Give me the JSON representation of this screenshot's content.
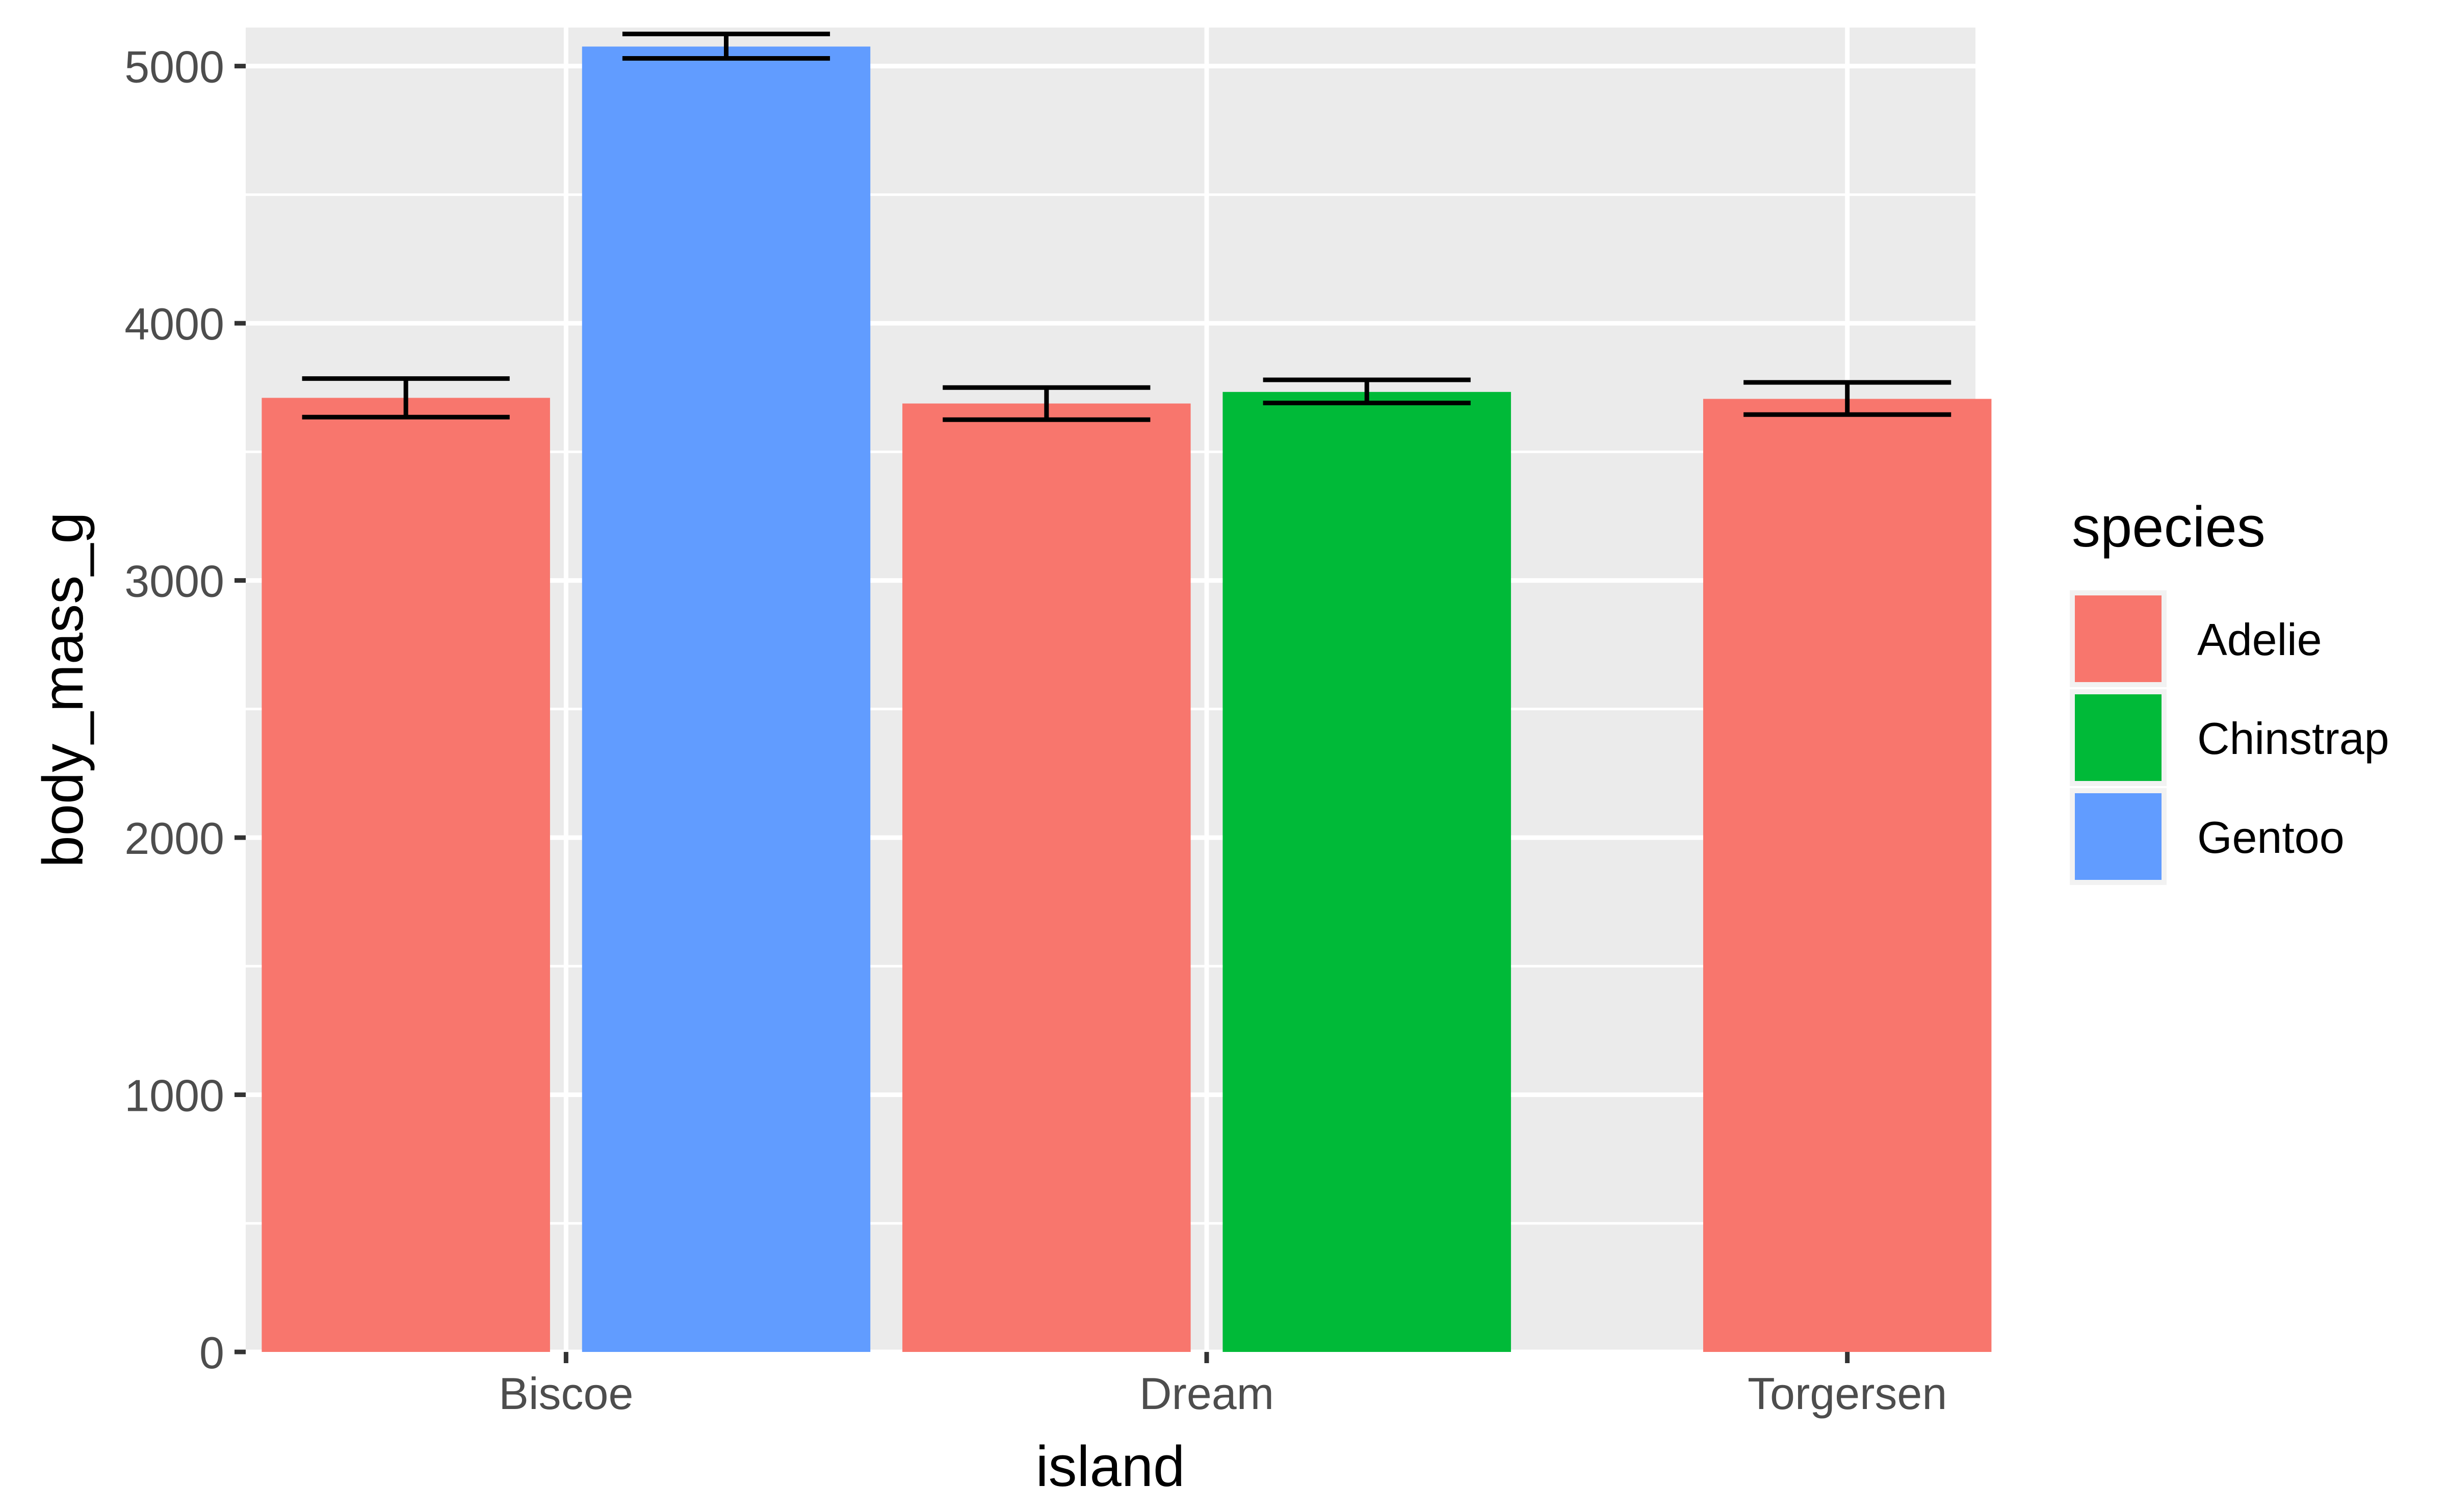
{
  "chart_data": {
    "type": "bar",
    "xlabel": "island",
    "ylabel": "body_mass_g",
    "ylim": [
      0,
      5150
    ],
    "yticks": [
      0,
      1000,
      2000,
      3000,
      4000,
      5000
    ],
    "categories": [
      "Biscoe",
      "Dream",
      "Torgersen"
    ],
    "legend": {
      "title": "species",
      "position": "right",
      "items": [
        {
          "name": "Adelie",
          "color": "#F8766D"
        },
        {
          "name": "Chinstrap",
          "color": "#00BA38"
        },
        {
          "name": "Gentoo",
          "color": "#619CFF"
        }
      ]
    },
    "grid": true,
    "bars": [
      {
        "category": "Biscoe",
        "species": "Adelie",
        "slot": 0,
        "slots": 2,
        "value": 3710,
        "err_low": 3635,
        "err_high": 3785
      },
      {
        "category": "Biscoe",
        "species": "Gentoo",
        "slot": 1,
        "slots": 2,
        "value": 5076,
        "err_low": 5030,
        "err_high": 5125
      },
      {
        "category": "Dream",
        "species": "Adelie",
        "slot": 0,
        "slots": 2,
        "value": 3688,
        "err_low": 3625,
        "err_high": 3750
      },
      {
        "category": "Dream",
        "species": "Chinstrap",
        "slot": 1,
        "slots": 2,
        "value": 3733,
        "err_low": 3690,
        "err_high": 3780
      },
      {
        "category": "Torgersen",
        "species": "Adelie",
        "slot": 0,
        "slots": 1,
        "value": 3706,
        "err_low": 3645,
        "err_high": 3770
      }
    ]
  }
}
